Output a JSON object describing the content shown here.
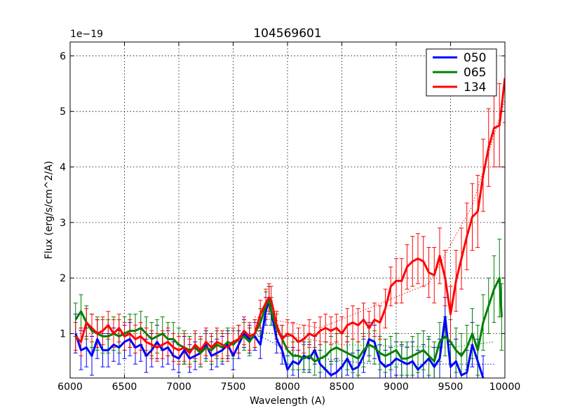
{
  "chart_data": {
    "type": "line",
    "title": "104569601",
    "xlabel": "Wavelength (A)",
    "ylabel": "Flux (erg/s/cm^2/A)",
    "y_scale_label": "1e−19",
    "xlim": [
      6000,
      10000
    ],
    "ylim": [
      0.2,
      6.25
    ],
    "xticks": [
      6000,
      6500,
      7000,
      7500,
      8000,
      8500,
      9000,
      9500,
      10000
    ],
    "xtick_labels": [
      "6000",
      "6500",
      "7000",
      "7500",
      "8000",
      "8500",
      "9000",
      "9500",
      "10000"
    ],
    "yticks": [
      1,
      2,
      3,
      4,
      5,
      6
    ],
    "ytick_labels": [
      "1",
      "2",
      "3",
      "4",
      "5",
      "6"
    ],
    "grid": true,
    "legend_position": "top-right",
    "series": [
      {
        "name": "050",
        "color": "#0000ff",
        "x": [
          6050,
          6100,
          6150,
          6200,
          6250,
          6300,
          6350,
          6400,
          6450,
          6500,
          6550,
          6600,
          6650,
          6700,
          6750,
          6800,
          6850,
          6900,
          6950,
          7000,
          7050,
          7100,
          7150,
          7200,
          7250,
          7300,
          7350,
          7400,
          7450,
          7500,
          7550,
          7600,
          7650,
          7700,
          7750,
          7800,
          7830,
          7850,
          7900,
          7950,
          8000,
          8050,
          8100,
          8150,
          8200,
          8250,
          8300,
          8350,
          8400,
          8450,
          8500,
          8550,
          8600,
          8650,
          8700,
          8750,
          8800,
          8850,
          8900,
          8950,
          9000,
          9050,
          9100,
          9150,
          9200,
          9250,
          9300,
          9350,
          9400,
          9450,
          9500,
          9550,
          9600,
          9650,
          9700,
          9750,
          9800
        ],
        "y": [
          1.0,
          0.7,
          0.75,
          0.6,
          0.9,
          0.7,
          0.7,
          0.8,
          0.75,
          0.85,
          0.9,
          0.75,
          0.8,
          0.6,
          0.7,
          0.85,
          0.7,
          0.75,
          0.6,
          0.55,
          0.7,
          0.55,
          0.6,
          0.65,
          0.8,
          0.6,
          0.65,
          0.7,
          0.8,
          0.6,
          0.8,
          1.0,
          0.9,
          0.95,
          0.8,
          1.4,
          1.6,
          1.4,
          0.9,
          0.7,
          0.35,
          0.5,
          0.45,
          0.6,
          0.55,
          0.7,
          0.45,
          0.35,
          0.25,
          0.3,
          0.4,
          0.55,
          0.35,
          0.4,
          0.6,
          0.9,
          0.85,
          0.5,
          0.4,
          0.45,
          0.55,
          0.5,
          0.45,
          0.5,
          0.35,
          0.45,
          0.55,
          0.4,
          0.55,
          1.3,
          0.4,
          0.5,
          0.25,
          0.3,
          0.8,
          0.5,
          0.2
        ],
        "yerr": [
          0.35,
          0.35,
          0.35,
          0.35,
          0.35,
          0.3,
          0.3,
          0.3,
          0.3,
          0.3,
          0.3,
          0.3,
          0.3,
          0.3,
          0.3,
          0.3,
          0.3,
          0.3,
          0.25,
          0.25,
          0.25,
          0.25,
          0.25,
          0.25,
          0.25,
          0.25,
          0.25,
          0.25,
          0.25,
          0.25,
          0.25,
          0.25,
          0.25,
          0.25,
          0.25,
          0.25,
          0.25,
          0.25,
          0.25,
          0.25,
          0.25,
          0.25,
          0.25,
          0.25,
          0.25,
          0.25,
          0.25,
          0.25,
          0.25,
          0.25,
          0.3,
          0.3,
          0.3,
          0.3,
          0.3,
          0.3,
          0.3,
          0.3,
          0.3,
          0.3,
          0.3,
          0.3,
          0.3,
          0.35,
          0.35,
          0.35,
          0.35,
          0.35,
          0.35,
          0.35,
          0.4,
          0.4,
          0.4,
          0.4,
          0.4,
          0.4,
          0.4
        ]
      },
      {
        "name": "065",
        "color": "#008000",
        "x": [
          6050,
          6100,
          6150,
          6200,
          6250,
          6300,
          6350,
          6400,
          6450,
          6500,
          6550,
          6600,
          6650,
          6700,
          6750,
          6800,
          6850,
          6900,
          6950,
          7000,
          7050,
          7100,
          7150,
          7200,
          7250,
          7300,
          7350,
          7400,
          7450,
          7500,
          7550,
          7600,
          7650,
          7700,
          7750,
          7800,
          7830,
          7850,
          7900,
          7950,
          8000,
          8050,
          8100,
          8150,
          8200,
          8250,
          8300,
          8350,
          8400,
          8450,
          8500,
          8550,
          8600,
          8650,
          8700,
          8750,
          8800,
          8850,
          8900,
          8950,
          9000,
          9050,
          9100,
          9150,
          9200,
          9250,
          9300,
          9350,
          9400,
          9450,
          9500,
          9550,
          9600,
          9650,
          9700,
          9750,
          9800,
          9850,
          9900,
          9950,
          9970
        ],
        "y": [
          1.25,
          1.4,
          1.2,
          1.05,
          1.0,
          0.95,
          0.95,
          1.0,
          0.95,
          1.0,
          1.05,
          1.05,
          1.1,
          1.0,
          0.9,
          0.95,
          1.0,
          0.9,
          0.9,
          0.8,
          0.75,
          0.7,
          0.75,
          0.65,
          0.75,
          0.7,
          0.8,
          0.75,
          0.85,
          0.8,
          0.9,
          0.95,
          0.85,
          1.0,
          1.2,
          1.5,
          1.6,
          1.4,
          1.1,
          0.9,
          0.7,
          0.6,
          0.6,
          0.55,
          0.6,
          0.5,
          0.55,
          0.6,
          0.7,
          0.75,
          0.7,
          0.65,
          0.6,
          0.55,
          0.7,
          0.8,
          0.75,
          0.65,
          0.6,
          0.65,
          0.7,
          0.55,
          0.55,
          0.6,
          0.65,
          0.7,
          0.6,
          0.5,
          0.85,
          0.95,
          0.85,
          0.7,
          0.6,
          0.75,
          1.0,
          0.7,
          1.2,
          1.5,
          1.8,
          2.0,
          1.3
        ],
        "yerr": [
          0.3,
          0.3,
          0.3,
          0.3,
          0.3,
          0.3,
          0.3,
          0.3,
          0.3,
          0.3,
          0.3,
          0.3,
          0.3,
          0.3,
          0.3,
          0.3,
          0.3,
          0.3,
          0.3,
          0.3,
          0.3,
          0.25,
          0.25,
          0.25,
          0.25,
          0.25,
          0.25,
          0.25,
          0.25,
          0.25,
          0.25,
          0.25,
          0.25,
          0.25,
          0.25,
          0.25,
          0.25,
          0.25,
          0.25,
          0.25,
          0.25,
          0.25,
          0.25,
          0.25,
          0.25,
          0.25,
          0.25,
          0.25,
          0.25,
          0.25,
          0.3,
          0.3,
          0.3,
          0.3,
          0.3,
          0.3,
          0.3,
          0.3,
          0.3,
          0.3,
          0.3,
          0.3,
          0.3,
          0.35,
          0.35,
          0.35,
          0.35,
          0.35,
          0.35,
          0.35,
          0.4,
          0.4,
          0.4,
          0.4,
          0.45,
          0.45,
          0.5,
          0.5,
          0.6,
          0.7,
          0.6
        ]
      },
      {
        "name": "134",
        "color": "#ff0000",
        "x": [
          6050,
          6100,
          6150,
          6200,
          6250,
          6300,
          6350,
          6400,
          6450,
          6500,
          6550,
          6600,
          6650,
          6700,
          6750,
          6800,
          6850,
          6900,
          6950,
          7000,
          7050,
          7100,
          7150,
          7200,
          7250,
          7300,
          7350,
          7400,
          7450,
          7500,
          7550,
          7600,
          7650,
          7700,
          7750,
          7800,
          7830,
          7850,
          7900,
          7950,
          8000,
          8050,
          8100,
          8150,
          8200,
          8250,
          8300,
          8350,
          8400,
          8450,
          8500,
          8550,
          8600,
          8650,
          8700,
          8750,
          8800,
          8850,
          8900,
          8950,
          9000,
          9050,
          9100,
          9150,
          9200,
          9250,
          9300,
          9350,
          9400,
          9450,
          9500,
          9550,
          9600,
          9650,
          9700,
          9750,
          9800,
          9850,
          9900,
          9950,
          10000
        ],
        "y": [
          0.95,
          0.85,
          1.2,
          1.1,
          1.0,
          1.05,
          1.15,
          1.0,
          1.1,
          0.95,
          1.0,
          0.9,
          0.95,
          0.85,
          0.8,
          0.75,
          0.8,
          0.85,
          0.75,
          0.7,
          0.75,
          0.65,
          0.8,
          0.7,
          0.85,
          0.75,
          0.85,
          0.8,
          0.75,
          0.85,
          0.9,
          1.05,
          0.95,
          1.0,
          1.35,
          1.55,
          1.65,
          1.6,
          1.15,
          0.9,
          1.0,
          0.95,
          0.85,
          0.9,
          1.0,
          0.95,
          1.05,
          1.1,
          1.05,
          1.1,
          1.0,
          1.15,
          1.2,
          1.15,
          1.25,
          1.1,
          1.25,
          1.2,
          1.45,
          1.85,
          1.95,
          1.95,
          2.2,
          2.3,
          2.35,
          2.3,
          2.1,
          2.05,
          2.4,
          2.0,
          1.35,
          1.95,
          2.35,
          2.75,
          3.1,
          3.2,
          3.85,
          4.35,
          4.7,
          4.75,
          5.6
        ],
        "yerr": [
          0.25,
          0.25,
          0.25,
          0.25,
          0.25,
          0.25,
          0.25,
          0.25,
          0.25,
          0.25,
          0.25,
          0.25,
          0.25,
          0.25,
          0.25,
          0.25,
          0.25,
          0.25,
          0.25,
          0.25,
          0.25,
          0.25,
          0.25,
          0.25,
          0.25,
          0.25,
          0.25,
          0.25,
          0.25,
          0.25,
          0.25,
          0.25,
          0.25,
          0.25,
          0.25,
          0.25,
          0.25,
          0.25,
          0.25,
          0.25,
          0.25,
          0.25,
          0.25,
          0.25,
          0.25,
          0.25,
          0.25,
          0.25,
          0.25,
          0.25,
          0.3,
          0.3,
          0.3,
          0.3,
          0.3,
          0.3,
          0.3,
          0.3,
          0.35,
          0.35,
          0.4,
          0.4,
          0.4,
          0.45,
          0.45,
          0.45,
          0.45,
          0.5,
          0.5,
          0.5,
          0.5,
          0.55,
          0.55,
          0.6,
          0.6,
          0.65,
          0.65,
          0.7,
          0.7,
          0.75,
          0.8
        ]
      }
    ],
    "reference_lines": [
      {
        "series": "050",
        "color": "#0000ff",
        "style": "dotted",
        "x": [
          7700,
          8100,
          8800,
          9900
        ],
        "y": [
          1.0,
          0.6,
          0.45,
          0.45
        ]
      },
      {
        "series": "065",
        "color": "#008000",
        "style": "dotted",
        "x": [
          7700,
          8500,
          9500,
          9900
        ],
        "y": [
          1.05,
          0.8,
          0.75,
          0.85
        ]
      },
      {
        "series": "134",
        "color": "#ff0000",
        "style": "dotted",
        "x": [
          7700,
          8300,
          8800,
          9300,
          9700,
          10000
        ],
        "y": [
          1.3,
          1.1,
          1.5,
          1.9,
          3.3,
          5.2
        ]
      }
    ]
  }
}
